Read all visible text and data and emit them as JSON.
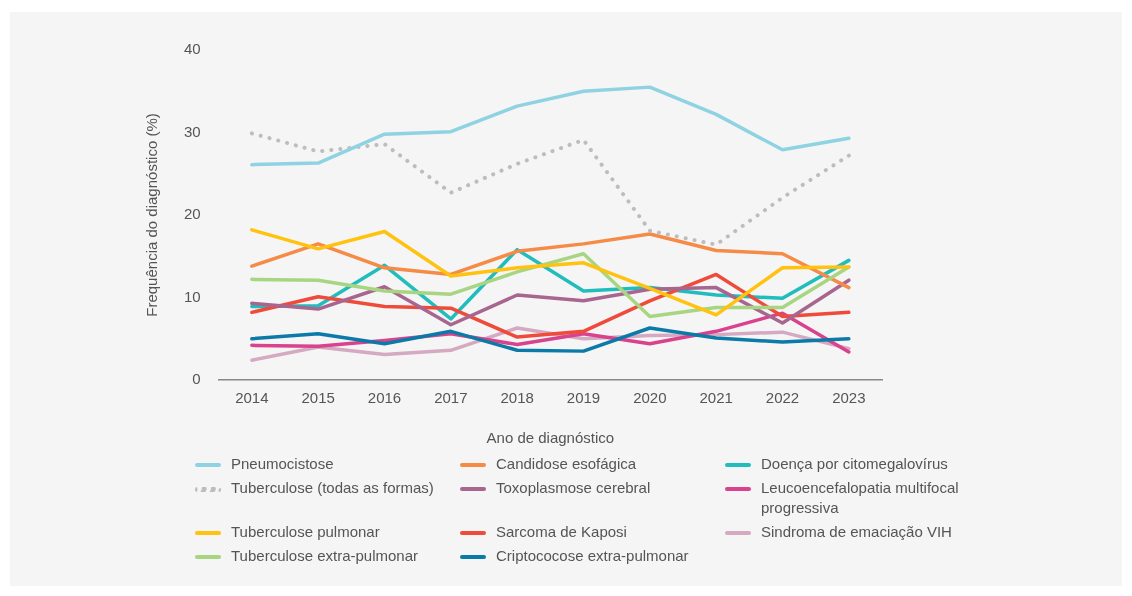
{
  "chart_data": {
    "type": "line",
    "xlabel": "Ano de diagnóstico",
    "ylabel": "Frequência do diagnóstico (%)",
    "categories": [
      "2014",
      "2015",
      "2016",
      "2017",
      "2018",
      "2019",
      "2020",
      "2021",
      "2022",
      "2023"
    ],
    "ylim": [
      0,
      40
    ],
    "yticks": [
      0,
      10,
      20,
      30,
      40
    ],
    "grid": false,
    "legend": "bottom",
    "marker": "none",
    "line_style": "solid",
    "series": [
      {
        "name": "Pneumocistose",
        "color": "#8fd3e3",
        "values": [
          26.1,
          26.3,
          29.8,
          30.1,
          33.2,
          35.0,
          35.5,
          32.2,
          27.9,
          29.3
        ]
      },
      {
        "name": "Tuberculose (todas as formas)",
        "color": "#bdbdbd",
        "line_style": "dotted",
        "values": [
          29.9,
          27.7,
          28.6,
          22.7,
          26.2,
          29.1,
          18.1,
          16.4,
          22.1,
          27.2
        ]
      },
      {
        "name": "Tuberculose pulmonar",
        "color": "#fec20f",
        "values": [
          18.2,
          15.9,
          18.0,
          12.6,
          13.6,
          14.2,
          11.1,
          7.9,
          13.6,
          13.7
        ]
      },
      {
        "name": "Tuberculose extra-pulmonar",
        "color": "#a8d581",
        "values": [
          12.2,
          12.1,
          10.8,
          10.4,
          13.1,
          15.3,
          7.7,
          8.8,
          8.8,
          13.7
        ]
      },
      {
        "name": "Candidose esofágica",
        "color": "#f58b47",
        "values": [
          13.8,
          16.5,
          13.6,
          12.8,
          15.6,
          16.5,
          17.7,
          15.7,
          15.3,
          11.2
        ]
      },
      {
        "name": "Toxoplasmose cerebral",
        "color": "#a7658f",
        "values": [
          9.3,
          8.6,
          11.3,
          6.7,
          10.3,
          9.6,
          11.0,
          11.2,
          6.9,
          12.1
        ]
      },
      {
        "name": "Sarcoma de Kaposi",
        "color": "#ef4b3b",
        "values": [
          8.2,
          10.1,
          8.9,
          8.7,
          5.2,
          5.9,
          9.6,
          12.8,
          7.7,
          8.2
        ]
      },
      {
        "name": "Criptococose extra-pulmonar",
        "color": "#0b7aa8",
        "values": [
          5.0,
          5.6,
          4.4,
          5.9,
          3.6,
          3.5,
          6.3,
          5.1,
          4.6,
          5.0
        ]
      },
      {
        "name": "Doença por citomegalovírus",
        "color": "#21bcbc",
        "values": [
          8.9,
          9.0,
          13.9,
          7.4,
          15.8,
          10.8,
          11.2,
          10.3,
          9.9,
          14.5
        ]
      },
      {
        "name": "Leucoencefalopatia multifocal progressiva",
        "color": "#d9428c",
        "values": [
          4.2,
          4.1,
          4.8,
          5.6,
          4.3,
          5.6,
          4.4,
          5.9,
          8.1,
          3.4
        ]
      },
      {
        "name": "Sindroma de emaciação VIH",
        "color": "#d4a9c1",
        "values": [
          2.4,
          4.0,
          3.1,
          3.6,
          6.3,
          5.0,
          5.4,
          5.5,
          5.8,
          3.8
        ]
      }
    ]
  }
}
